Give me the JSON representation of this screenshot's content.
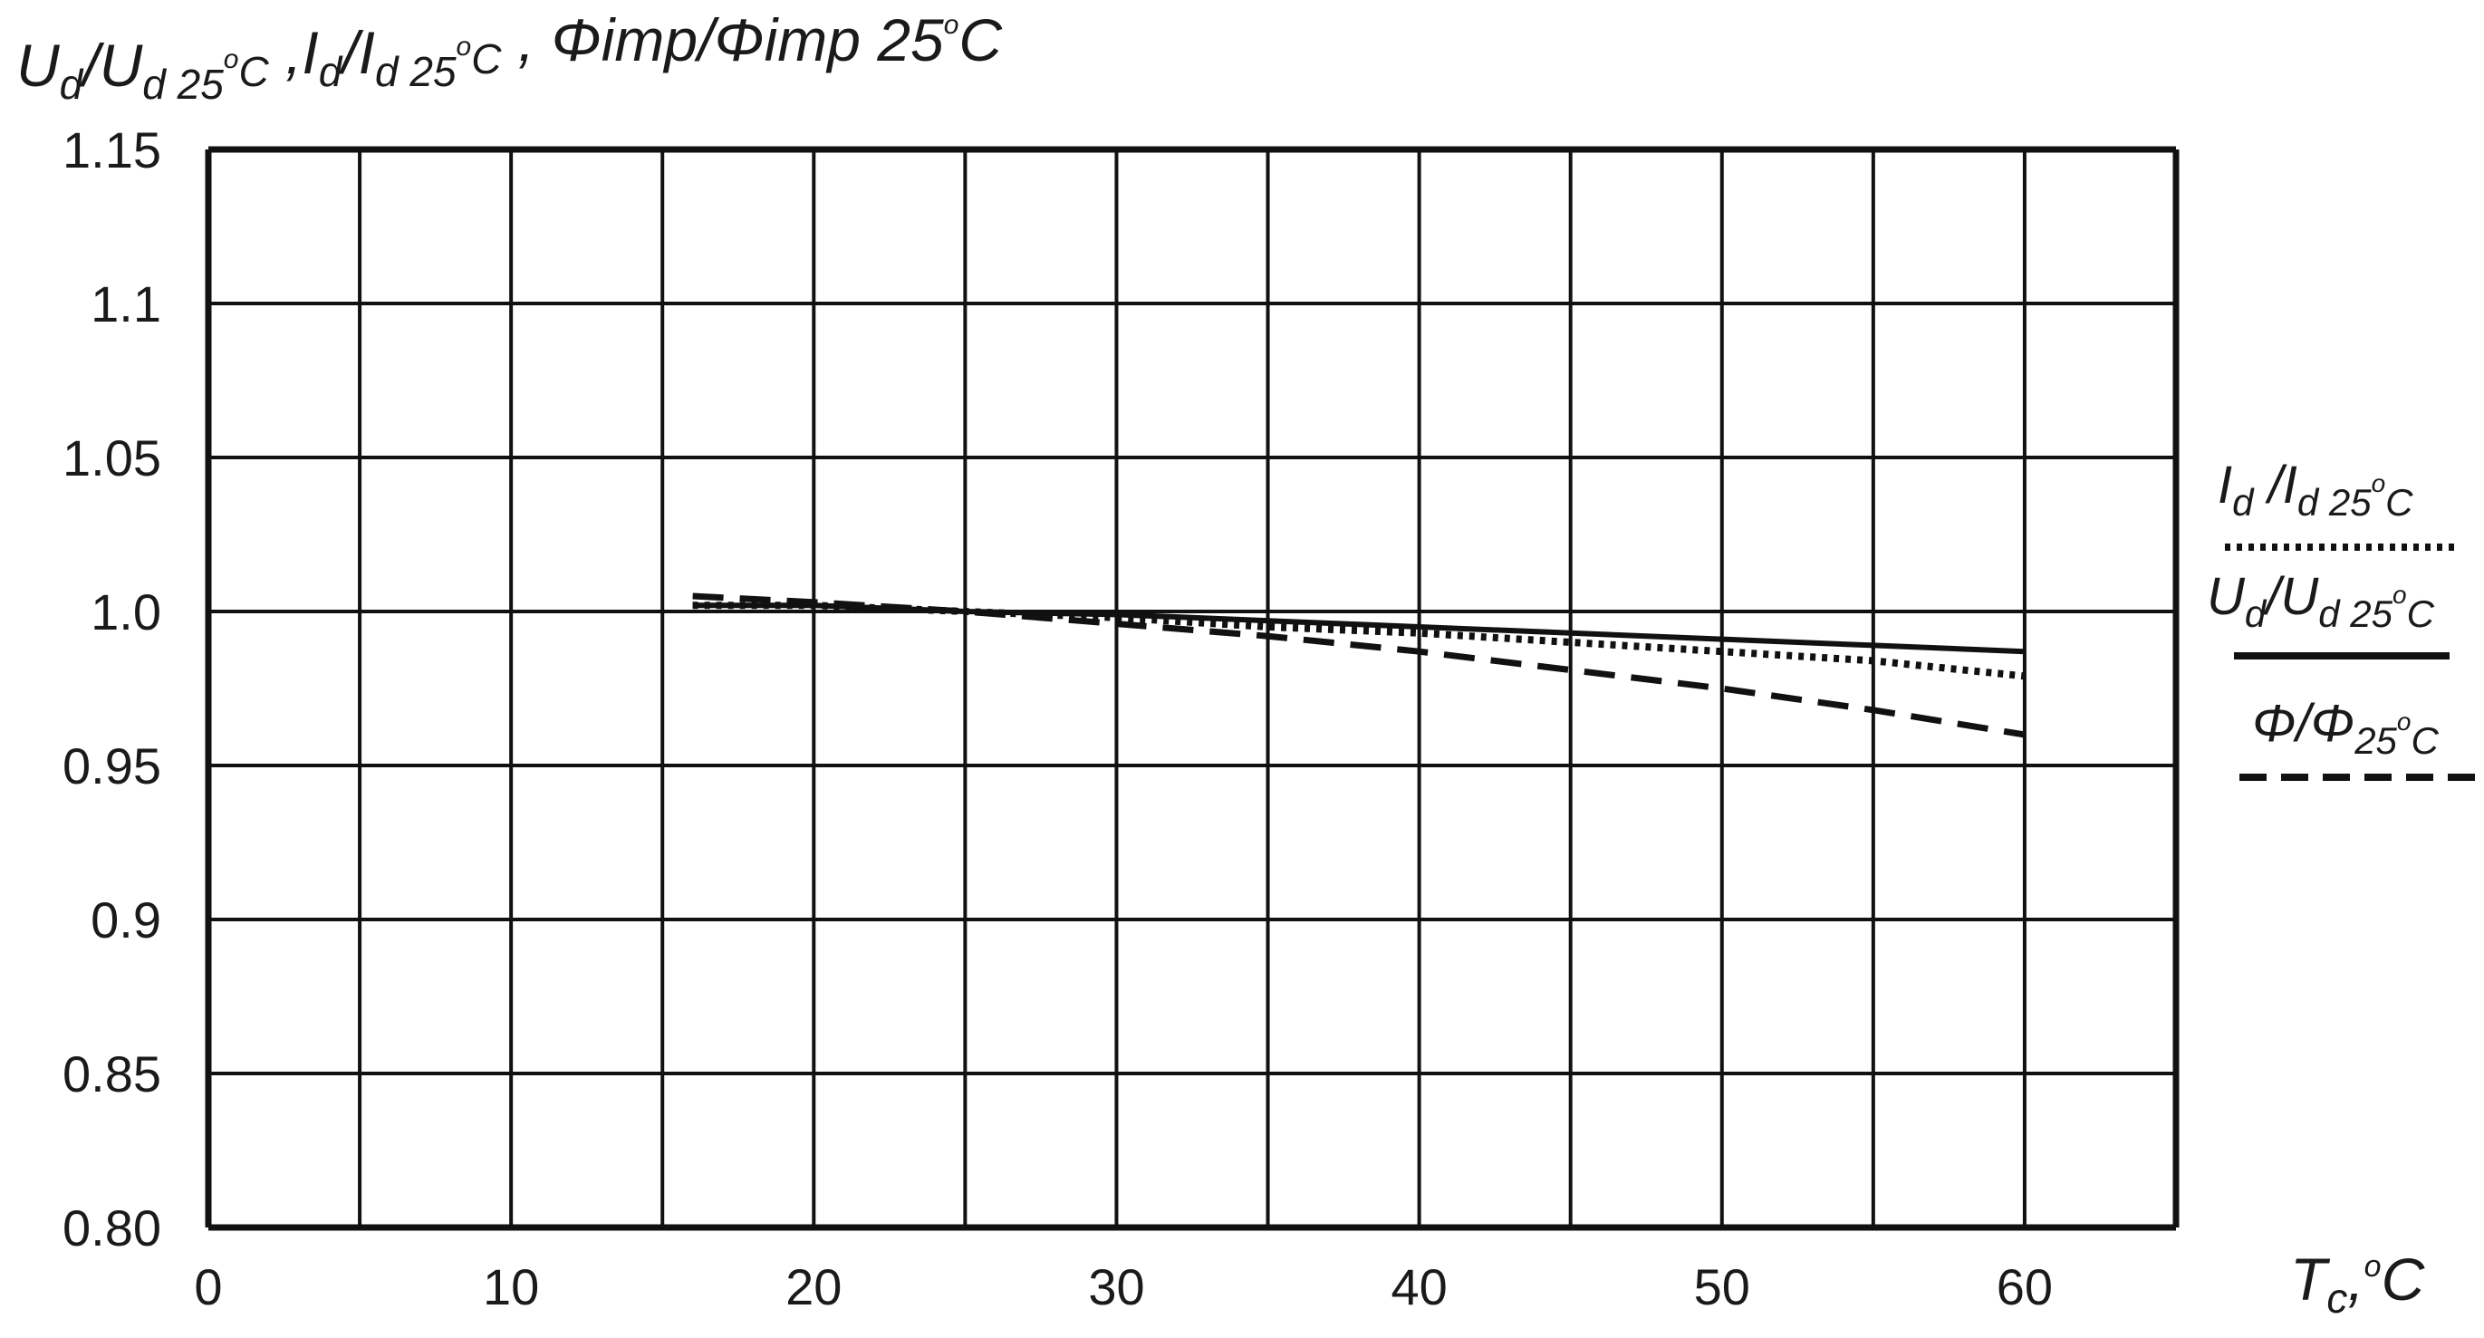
{
  "chart_data": {
    "type": "line",
    "title_parts": {
      "u": "U",
      "u_sub": "d",
      "sep1": "/U",
      "u_ref_sub": "d 25",
      "deg": "o",
      "c1": "C",
      "i_prefix": " ,I",
      "i_sub": "d",
      "i_sep": "/I",
      "i_ref_sub": "d 25",
      "c2": "C",
      "phi_prefix": " , Φimp/Φimp 25",
      "c3": "C"
    },
    "xlabel_parts": {
      "t": "T",
      "t_sub": "c",
      "comma": ",",
      "deg": "o",
      "c": "C"
    },
    "x_ticks": [
      "0",
      "10",
      "20",
      "30",
      "40",
      "50",
      "60"
    ],
    "y_ticks": [
      "0.80",
      "0.85",
      "0.9",
      "0.95",
      "1.0",
      "1.05",
      "1.1",
      "1.15"
    ],
    "xlim": [
      0,
      65
    ],
    "ylim": [
      0.8,
      1.15
    ],
    "grid": true,
    "legend_placement": "right",
    "series": [
      {
        "name": "Id/Id 25°C",
        "style": "dotted",
        "x": [
          16,
          20,
          25,
          30,
          35,
          40,
          45,
          50,
          55,
          60
        ],
        "y": [
          1.002,
          1.002,
          1.0,
          0.998,
          0.995,
          0.993,
          0.99,
          0.987,
          0.984,
          0.979
        ]
      },
      {
        "name": "Ud/Ud 25°C",
        "style": "solid",
        "x": [
          16,
          20,
          25,
          30,
          35,
          40,
          45,
          50,
          55,
          60
        ],
        "y": [
          1.002,
          1.002,
          1.0,
          0.999,
          0.997,
          0.995,
          0.993,
          0.991,
          0.989,
          0.987
        ]
      },
      {
        "name": "Φ/Φ 25°C",
        "style": "dashed",
        "x": [
          16,
          20,
          25,
          30,
          35,
          40,
          45,
          50,
          55,
          60
        ],
        "y": [
          1.005,
          1.003,
          1.0,
          0.996,
          0.992,
          0.987,
          0.981,
          0.975,
          0.968,
          0.96
        ]
      }
    ],
    "legend": [
      {
        "main": "I",
        "sub1": "d",
        "mid": " /I",
        "sub2": "d  25",
        "deg": "o",
        "c": "C"
      },
      {
        "main": "U",
        "sub1": "d",
        "mid": "/U",
        "sub2": "d 25",
        "deg": "o",
        "c": "C"
      },
      {
        "main": "Φ/Φ",
        "sub1": "",
        "mid": "",
        "sub2": "25",
        "deg": "o",
        "c": "C"
      }
    ]
  }
}
